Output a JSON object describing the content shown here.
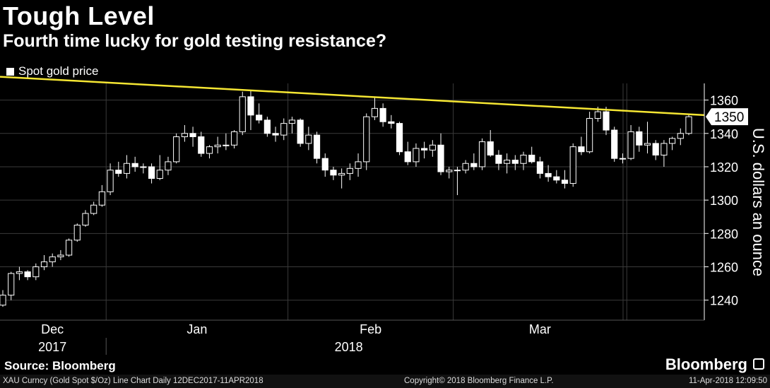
{
  "header": {
    "title": "Tough Level",
    "subtitle": "Fourth time lucky for gold testing resistance?"
  },
  "footer": {
    "source": "Source: Bloomberg",
    "brand": "Bloomberg",
    "chart_info": "XAU Curncy (Gold Spot  $/Oz) Line Chart  Daily 12DEC2017-11APR2018",
    "copyright": "Copyright© 2018 Bloomberg Finance L.P.",
    "timestamp": "11-Apr-2018 12:09:50"
  },
  "colors": {
    "background": "#000000",
    "candle": "#ffffff",
    "resistance_line": "#f5e633",
    "grid": "#3a3a3a"
  },
  "chart_data": {
    "type": "candlestick",
    "title": "Tough Level",
    "subtitle": "Fourth time lucky for gold testing resistance?",
    "ylabel": "U.S. dollars an ounce",
    "ylim": [
      1228,
      1370
    ],
    "y_ticks": [
      1240,
      1260,
      1280,
      1300,
      1320,
      1340,
      1360
    ],
    "x_tick_labels": [
      "Dec",
      "Jan",
      "Feb",
      "Mar"
    ],
    "x_year_labels": [
      "2017",
      "2018"
    ],
    "legend": [
      "Spot gold price"
    ],
    "legend_position": "top-left",
    "last_price_label": "1350",
    "grid": true,
    "resistance_line": {
      "start_price": 1374,
      "end_price": 1351
    },
    "candles": [
      {
        "date": "2017-12-12",
        "o": 1237,
        "h": 1246,
        "l": 1236,
        "c": 1243
      },
      {
        "date": "2017-12-13",
        "o": 1243,
        "h": 1257,
        "l": 1240,
        "c": 1256
      },
      {
        "date": "2017-12-14",
        "o": 1256,
        "h": 1260,
        "l": 1252,
        "c": 1257
      },
      {
        "date": "2017-12-15",
        "o": 1257,
        "h": 1258,
        "l": 1252,
        "c": 1254
      },
      {
        "date": "2017-12-18",
        "o": 1254,
        "h": 1262,
        "l": 1252,
        "c": 1260
      },
      {
        "date": "2017-12-19",
        "o": 1260,
        "h": 1267,
        "l": 1258,
        "c": 1263
      },
      {
        "date": "2017-12-20",
        "o": 1263,
        "h": 1268,
        "l": 1260,
        "c": 1266
      },
      {
        "date": "2017-12-21",
        "o": 1266,
        "h": 1270,
        "l": 1264,
        "c": 1267
      },
      {
        "date": "2017-12-22",
        "o": 1267,
        "h": 1277,
        "l": 1266,
        "c": 1276
      },
      {
        "date": "2017-12-26",
        "o": 1276,
        "h": 1286,
        "l": 1275,
        "c": 1285
      },
      {
        "date": "2017-12-27",
        "o": 1285,
        "h": 1294,
        "l": 1284,
        "c": 1292
      },
      {
        "date": "2017-12-28",
        "o": 1292,
        "h": 1299,
        "l": 1291,
        "c": 1297
      },
      {
        "date": "2017-12-29",
        "o": 1297,
        "h": 1309,
        "l": 1296,
        "c": 1305
      },
      {
        "date": "2018-01-02",
        "o": 1305,
        "h": 1322,
        "l": 1303,
        "c": 1318
      },
      {
        "date": "2018-01-03",
        "o": 1318,
        "h": 1323,
        "l": 1314,
        "c": 1316
      },
      {
        "date": "2018-01-04",
        "o": 1316,
        "h": 1327,
        "l": 1313,
        "c": 1322
      },
      {
        "date": "2018-01-05",
        "o": 1322,
        "h": 1326,
        "l": 1317,
        "c": 1320
      },
      {
        "date": "2018-01-08",
        "o": 1320,
        "h": 1322,
        "l": 1316,
        "c": 1320
      },
      {
        "date": "2018-01-09",
        "o": 1320,
        "h": 1322,
        "l": 1310,
        "c": 1313
      },
      {
        "date": "2018-01-10",
        "o": 1313,
        "h": 1327,
        "l": 1312,
        "c": 1318
      },
      {
        "date": "2018-01-11",
        "o": 1318,
        "h": 1326,
        "l": 1315,
        "c": 1323
      },
      {
        "date": "2018-01-12",
        "o": 1323,
        "h": 1340,
        "l": 1322,
        "c": 1338
      },
      {
        "date": "2018-01-15",
        "o": 1338,
        "h": 1345,
        "l": 1335,
        "c": 1340
      },
      {
        "date": "2018-01-16",
        "o": 1340,
        "h": 1344,
        "l": 1332,
        "c": 1338
      },
      {
        "date": "2018-01-17",
        "o": 1338,
        "h": 1341,
        "l": 1326,
        "c": 1328
      },
      {
        "date": "2018-01-18",
        "o": 1328,
        "h": 1333,
        "l": 1325,
        "c": 1332
      },
      {
        "date": "2018-01-19",
        "o": 1332,
        "h": 1338,
        "l": 1328,
        "c": 1333
      },
      {
        "date": "2018-01-22",
        "o": 1333,
        "h": 1340,
        "l": 1330,
        "c": 1333
      },
      {
        "date": "2018-01-23",
        "o": 1333,
        "h": 1342,
        "l": 1331,
        "c": 1341
      },
      {
        "date": "2018-01-24",
        "o": 1341,
        "h": 1365,
        "l": 1339,
        "c": 1362
      },
      {
        "date": "2018-01-25",
        "o": 1362,
        "h": 1366,
        "l": 1342,
        "c": 1351
      },
      {
        "date": "2018-01-26",
        "o": 1351,
        "h": 1358,
        "l": 1346,
        "c": 1348
      },
      {
        "date": "2018-01-29",
        "o": 1348,
        "h": 1350,
        "l": 1338,
        "c": 1340
      },
      {
        "date": "2018-01-30",
        "o": 1340,
        "h": 1344,
        "l": 1335,
        "c": 1339
      },
      {
        "date": "2018-01-31",
        "o": 1339,
        "h": 1349,
        "l": 1336,
        "c": 1346
      },
      {
        "date": "2018-02-01",
        "o": 1346,
        "h": 1350,
        "l": 1340,
        "c": 1348
      },
      {
        "date": "2018-02-02",
        "o": 1348,
        "h": 1349,
        "l": 1332,
        "c": 1334
      },
      {
        "date": "2018-02-05",
        "o": 1334,
        "h": 1344,
        "l": 1330,
        "c": 1339
      },
      {
        "date": "2018-02-06",
        "o": 1339,
        "h": 1341,
        "l": 1322,
        "c": 1325
      },
      {
        "date": "2018-02-07",
        "o": 1325,
        "h": 1328,
        "l": 1314,
        "c": 1318
      },
      {
        "date": "2018-02-08",
        "o": 1318,
        "h": 1320,
        "l": 1312,
        "c": 1315
      },
      {
        "date": "2018-02-09",
        "o": 1315,
        "h": 1319,
        "l": 1307,
        "c": 1316
      },
      {
        "date": "2018-02-12",
        "o": 1316,
        "h": 1322,
        "l": 1312,
        "c": 1319
      },
      {
        "date": "2018-02-13",
        "o": 1319,
        "h": 1328,
        "l": 1314,
        "c": 1323
      },
      {
        "date": "2018-02-14",
        "o": 1323,
        "h": 1352,
        "l": 1318,
        "c": 1350
      },
      {
        "date": "2018-02-15",
        "o": 1350,
        "h": 1362,
        "l": 1348,
        "c": 1355
      },
      {
        "date": "2018-02-16",
        "o": 1355,
        "h": 1358,
        "l": 1344,
        "c": 1347
      },
      {
        "date": "2018-02-19",
        "o": 1347,
        "h": 1351,
        "l": 1343,
        "c": 1346
      },
      {
        "date": "2018-02-20",
        "o": 1346,
        "h": 1347,
        "l": 1327,
        "c": 1329
      },
      {
        "date": "2018-02-21",
        "o": 1329,
        "h": 1335,
        "l": 1321,
        "c": 1323
      },
      {
        "date": "2018-02-22",
        "o": 1323,
        "h": 1334,
        "l": 1320,
        "c": 1331
      },
      {
        "date": "2018-02-23",
        "o": 1331,
        "h": 1335,
        "l": 1325,
        "c": 1330
      },
      {
        "date": "2018-02-26",
        "o": 1330,
        "h": 1336,
        "l": 1326,
        "c": 1333
      },
      {
        "date": "2018-02-27",
        "o": 1333,
        "h": 1340,
        "l": 1315,
        "c": 1317
      },
      {
        "date": "2018-02-28",
        "o": 1317,
        "h": 1320,
        "l": 1313,
        "c": 1318
      },
      {
        "date": "2018-03-01",
        "o": 1318,
        "h": 1320,
        "l": 1303,
        "c": 1318
      },
      {
        "date": "2018-03-02",
        "o": 1318,
        "h": 1324,
        "l": 1316,
        "c": 1322
      },
      {
        "date": "2018-03-05",
        "o": 1322,
        "h": 1328,
        "l": 1318,
        "c": 1320
      },
      {
        "date": "2018-03-06",
        "o": 1320,
        "h": 1337,
        "l": 1318,
        "c": 1335
      },
      {
        "date": "2018-03-07",
        "o": 1335,
        "h": 1342,
        "l": 1326,
        "c": 1327
      },
      {
        "date": "2018-03-08",
        "o": 1327,
        "h": 1330,
        "l": 1318,
        "c": 1322
      },
      {
        "date": "2018-03-09",
        "o": 1322,
        "h": 1328,
        "l": 1316,
        "c": 1324
      },
      {
        "date": "2018-03-12",
        "o": 1324,
        "h": 1327,
        "l": 1318,
        "c": 1322
      },
      {
        "date": "2018-03-13",
        "o": 1322,
        "h": 1329,
        "l": 1318,
        "c": 1327
      },
      {
        "date": "2018-03-14",
        "o": 1327,
        "h": 1332,
        "l": 1322,
        "c": 1323
      },
      {
        "date": "2018-03-15",
        "o": 1323,
        "h": 1326,
        "l": 1313,
        "c": 1316
      },
      {
        "date": "2018-03-16",
        "o": 1316,
        "h": 1321,
        "l": 1311,
        "c": 1314
      },
      {
        "date": "2018-03-19",
        "o": 1314,
        "h": 1318,
        "l": 1310,
        "c": 1312
      },
      {
        "date": "2018-03-20",
        "o": 1312,
        "h": 1318,
        "l": 1307,
        "c": 1310
      },
      {
        "date": "2018-03-21",
        "o": 1310,
        "h": 1334,
        "l": 1308,
        "c": 1332
      },
      {
        "date": "2018-03-22",
        "o": 1332,
        "h": 1338,
        "l": 1327,
        "c": 1329
      },
      {
        "date": "2018-03-23",
        "o": 1329,
        "h": 1353,
        "l": 1328,
        "c": 1349
      },
      {
        "date": "2018-03-26",
        "o": 1349,
        "h": 1356,
        "l": 1347,
        "c": 1353
      },
      {
        "date": "2018-03-27",
        "o": 1353,
        "h": 1356,
        "l": 1339,
        "c": 1342
      },
      {
        "date": "2018-03-28",
        "o": 1342,
        "h": 1344,
        "l": 1323,
        "c": 1325
      },
      {
        "date": "2018-03-29",
        "o": 1325,
        "h": 1328,
        "l": 1322,
        "c": 1325
      },
      {
        "date": "2018-04-02",
        "o": 1325,
        "h": 1345,
        "l": 1324,
        "c": 1341
      },
      {
        "date": "2018-04-03",
        "o": 1341,
        "h": 1344,
        "l": 1329,
        "c": 1333
      },
      {
        "date": "2018-04-04",
        "o": 1333,
        "h": 1347,
        "l": 1328,
        "c": 1334
      },
      {
        "date": "2018-04-05",
        "o": 1334,
        "h": 1336,
        "l": 1324,
        "c": 1327
      },
      {
        "date": "2018-04-06",
        "o": 1327,
        "h": 1336,
        "l": 1320,
        "c": 1334
      },
      {
        "date": "2018-04-09",
        "o": 1334,
        "h": 1338,
        "l": 1330,
        "c": 1337
      },
      {
        "date": "2018-04-10",
        "o": 1337,
        "h": 1343,
        "l": 1333,
        "c": 1340
      },
      {
        "date": "2018-04-11",
        "o": 1340,
        "h": 1352,
        "l": 1339,
        "c": 1350
      }
    ]
  }
}
